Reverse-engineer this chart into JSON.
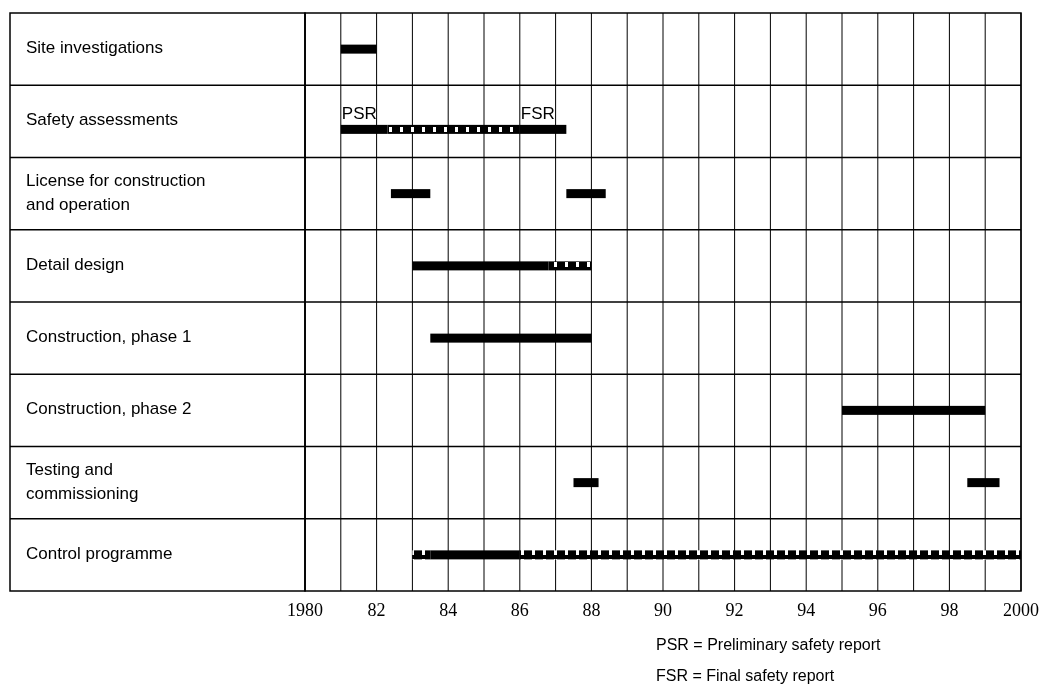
{
  "chart_data": {
    "type": "bar",
    "orientation": "horizontal",
    "stacked": false,
    "grid": "x",
    "categories": [
      "Site investigations",
      "Safety assessments",
      "License for construction and operation",
      "Detail design",
      "Construction, phase 1",
      "Construction, phase 2",
      "Testing and commissioning",
      "Control programme"
    ],
    "xlim": [
      1980,
      2000
    ],
    "xticks": [
      1980,
      {
        "value": 1981,
        "label": null
      },
      {
        "value": 1982,
        "label": "82"
      },
      {
        "value": 1983,
        "label": null
      },
      {
        "value": 1984,
        "label": "84"
      },
      {
        "value": 1985,
        "label": null
      },
      {
        "value": 1986,
        "label": "86"
      },
      {
        "value": 1987,
        "label": null
      },
      {
        "value": 1988,
        "label": "88"
      },
      {
        "value": 1989,
        "label": null
      },
      {
        "value": 1990,
        "label": "90"
      },
      {
        "value": 1991,
        "label": null
      },
      {
        "value": 1992,
        "label": "92"
      },
      {
        "value": 1993,
        "label": null
      },
      {
        "value": 1994,
        "label": "94"
      },
      {
        "value": 1995,
        "label": null
      },
      {
        "value": 1996,
        "label": "96"
      },
      {
        "value": 1997,
        "label": null
      },
      {
        "value": 1998,
        "label": "98"
      },
      {
        "value": 1999,
        "label": null
      },
      2000
    ],
    "series": [
      {
        "color": "#000000",
        "line_style": "solid",
        "base": [
          1981,
          1981,
          1982.4,
          1983,
          1983.5,
          1995,
          1987.5,
          1983.5
        ],
        "values": [
          1,
          1.3,
          1.1,
          3.8,
          4.5,
          4,
          0.7,
          2.5
        ]
      },
      {
        "color": "#000000",
        "line_style": "solid",
        "base": [
          null,
          1986,
          1987.3,
          null,
          null,
          null,
          1998.5,
          null
        ],
        "values": [
          null,
          1.3,
          1.1,
          null,
          null,
          null,
          0.9,
          null
        ]
      },
      {
        "color": "#000000",
        "line_style": "dashed",
        "base": [
          null,
          1982.3,
          null,
          1986.8,
          null,
          null,
          null,
          1986
        ],
        "values": [
          null,
          3.7,
          null,
          1.2,
          null,
          null,
          null,
          14
        ]
      },
      {
        "color": "#000000",
        "line_style": "dashed",
        "base": [
          null,
          null,
          null,
          null,
          null,
          null,
          null,
          1983
        ],
        "values": [
          null,
          null,
          null,
          null,
          null,
          null,
          null,
          0.5
        ]
      }
    ],
    "annotations": [
      {
        "text": "PSR",
        "x": 1981,
        "y": "Safety assessments"
      },
      {
        "text": "FSR",
        "x": 1986,
        "y": "Safety assessments"
      },
      "PSR = Preliminary safety report",
      "FSR = Final safety report"
    ]
  }
}
